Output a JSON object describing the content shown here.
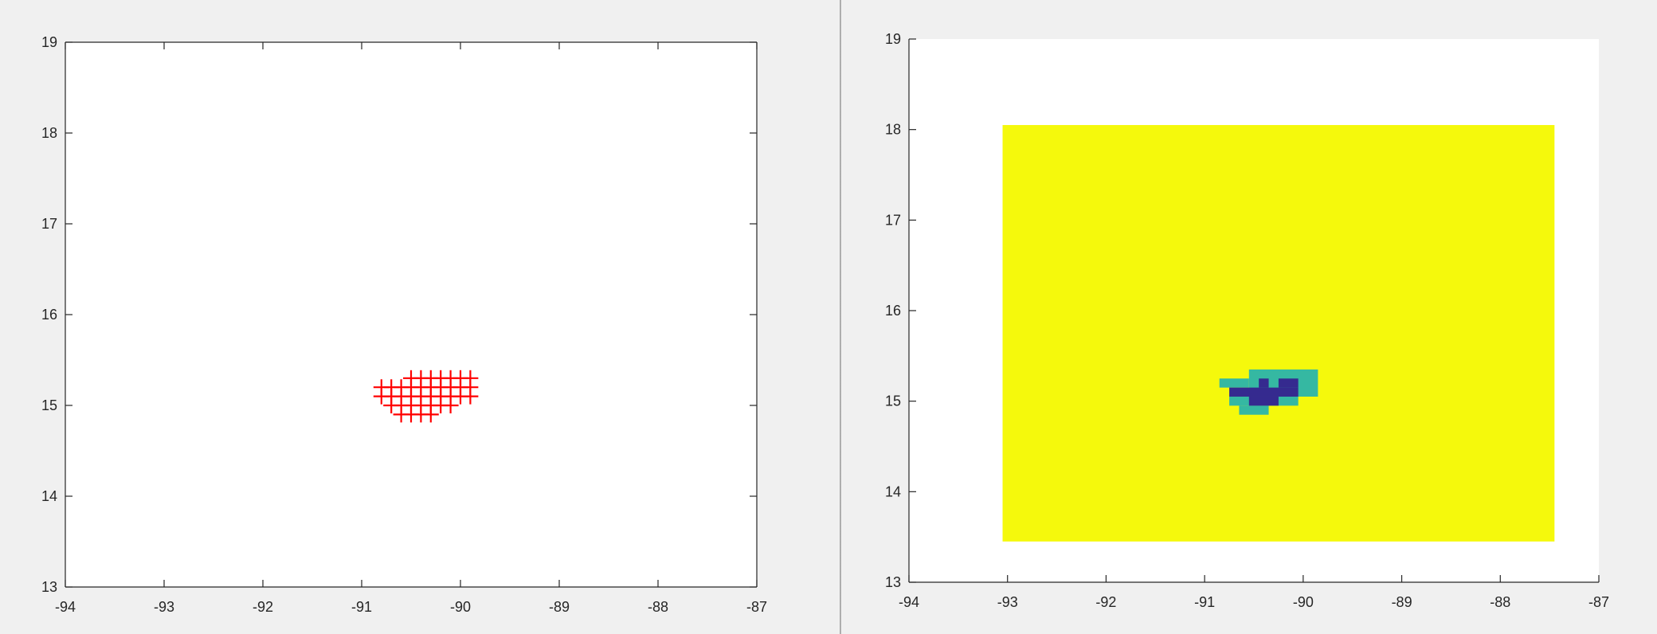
{
  "colors": {
    "figure_bg": "#f0f0f0",
    "axes_bg": "#ffffff",
    "axis_line": "#262626",
    "marker": "#ff0000",
    "colormap_high": "#f5f90c",
    "colormap_mid": "#35b8a2",
    "colormap_low": "#352a8f"
  },
  "chart_data": [
    {
      "type": "scatter",
      "title": "",
      "xlabel": "",
      "ylabel": "",
      "xlim": [
        -94,
        -87
      ],
      "ylim": [
        13,
        19
      ],
      "xticks": [
        -94,
        -93,
        -92,
        -91,
        -90,
        -89,
        -88,
        -87
      ],
      "yticks": [
        13,
        14,
        15,
        16,
        17,
        18,
        19
      ],
      "xtick_labels": [
        "-94",
        "-93",
        "-92",
        "-91",
        "-90",
        "-89",
        "-88",
        "-87"
      ],
      "ytick_labels": [
        "13",
        "14",
        "15",
        "16",
        "17",
        "18",
        "19"
      ],
      "box": true,
      "grid": false,
      "marker": "+",
      "series": [
        {
          "color": "#ff0000",
          "points": [
            [
              -90.5,
              15.3
            ],
            [
              -90.4,
              15.3
            ],
            [
              -90.3,
              15.3
            ],
            [
              -90.2,
              15.3
            ],
            [
              -90.1,
              15.3
            ],
            [
              -90.0,
              15.3
            ],
            [
              -89.9,
              15.3
            ],
            [
              -90.8,
              15.2
            ],
            [
              -90.7,
              15.2
            ],
            [
              -90.6,
              15.2
            ],
            [
              -90.5,
              15.2
            ],
            [
              -90.4,
              15.2
            ],
            [
              -90.3,
              15.2
            ],
            [
              -90.2,
              15.2
            ],
            [
              -90.1,
              15.2
            ],
            [
              -90.0,
              15.2
            ],
            [
              -89.9,
              15.2
            ],
            [
              -90.8,
              15.1
            ],
            [
              -90.7,
              15.1
            ],
            [
              -90.6,
              15.1
            ],
            [
              -90.5,
              15.1
            ],
            [
              -90.4,
              15.1
            ],
            [
              -90.3,
              15.1
            ],
            [
              -90.2,
              15.1
            ],
            [
              -90.1,
              15.1
            ],
            [
              -90.0,
              15.1
            ],
            [
              -89.9,
              15.1
            ],
            [
              -90.7,
              15.0
            ],
            [
              -90.6,
              15.0
            ],
            [
              -90.5,
              15.0
            ],
            [
              -90.4,
              15.0
            ],
            [
              -90.3,
              15.0
            ],
            [
              -90.2,
              15.0
            ],
            [
              -90.1,
              15.0
            ],
            [
              -90.6,
              14.9
            ],
            [
              -90.5,
              14.9
            ],
            [
              -90.4,
              14.9
            ],
            [
              -90.3,
              14.9
            ]
          ]
        }
      ]
    },
    {
      "type": "heatmap",
      "title": "",
      "xlabel": "",
      "ylabel": "",
      "xlim": [
        -94,
        -87
      ],
      "ylim": [
        13,
        19
      ],
      "xticks": [
        -94,
        -93,
        -92,
        -91,
        -90,
        -89,
        -88,
        -87
      ],
      "yticks": [
        13,
        14,
        15,
        16,
        17,
        18,
        19
      ],
      "xtick_labels": [
        "-94",
        "-93",
        "-92",
        "-91",
        "-90",
        "-89",
        "-88",
        "-87"
      ],
      "ytick_labels": [
        "13",
        "14",
        "15",
        "16",
        "17",
        "18",
        "19"
      ],
      "box": false,
      "grid": false,
      "extent": {
        "x": [
          -93.05,
          -87.45
        ],
        "y": [
          13.45,
          18.05
        ]
      },
      "background_value": 2,
      "colormap": [
        "#352a8f",
        "#35b8a2",
        "#f5f90c"
      ],
      "cells": [
        {
          "x": [
            -90.85,
            -90.55
          ],
          "y": [
            15.15,
            15.25
          ],
          "value": 1
        },
        {
          "x": [
            -90.55,
            -89.85
          ],
          "y": [
            15.05,
            15.35
          ],
          "value": 1
        },
        {
          "x": [
            -90.75,
            -90.05
          ],
          "y": [
            14.95,
            15.05
          ],
          "value": 1
        },
        {
          "x": [
            -90.65,
            -90.35
          ],
          "y": [
            14.85,
            14.95
          ],
          "value": 1
        },
        {
          "x": [
            -90.75,
            -90.05
          ],
          "y": [
            15.05,
            15.15
          ],
          "value": 0
        },
        {
          "x": [
            -90.55,
            -90.25
          ],
          "y": [
            14.95,
            15.05
          ],
          "value": 0
        },
        {
          "x": [
            -90.45,
            -90.35
          ],
          "y": [
            15.15,
            15.25
          ],
          "value": 0
        },
        {
          "x": [
            -90.25,
            -90.05
          ],
          "y": [
            15.15,
            15.25
          ],
          "value": 0
        }
      ]
    }
  ]
}
